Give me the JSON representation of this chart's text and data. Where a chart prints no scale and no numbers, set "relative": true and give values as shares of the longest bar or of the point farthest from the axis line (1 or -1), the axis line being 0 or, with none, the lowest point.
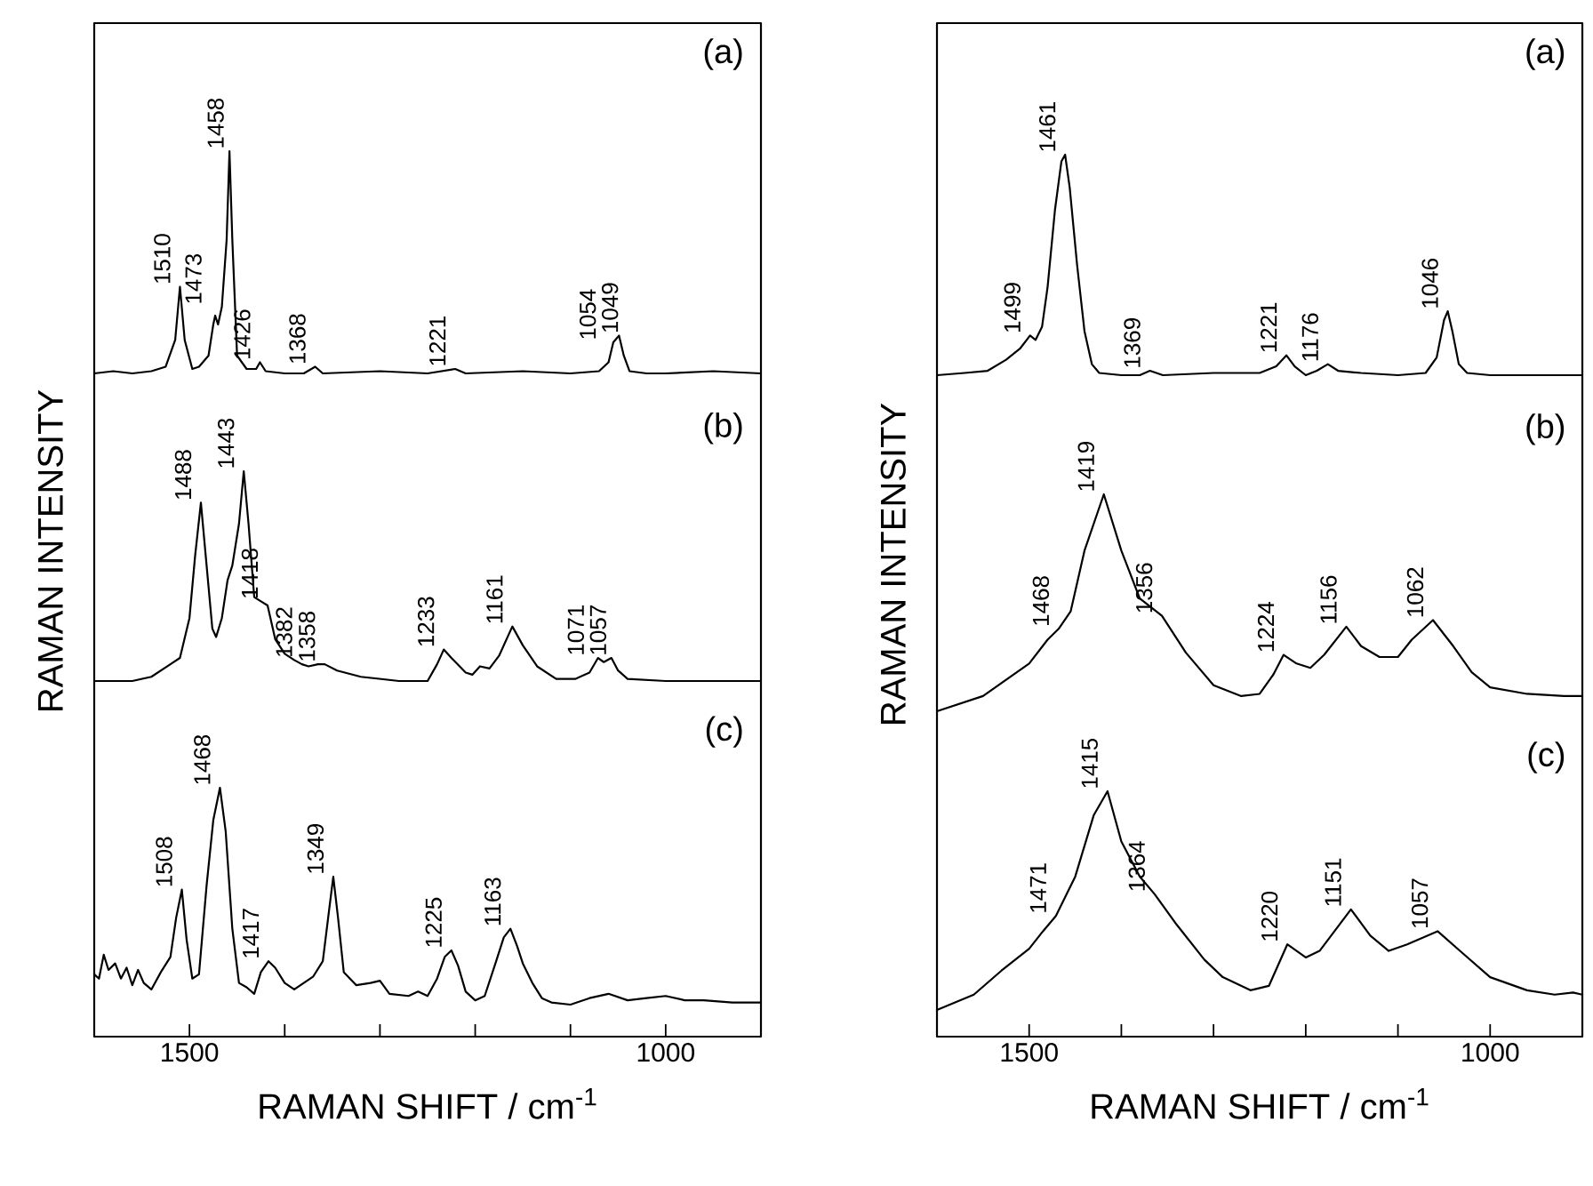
{
  "chart_data": [
    {
      "type": "line",
      "relative": true,
      "xlim": [
        1600,
        900
      ],
      "tick_labels": false,
      "series": [
        {
          "color": "#000000",
          "x": [
            1600,
            1580,
            1560,
            1540,
            1525,
            1515,
            1510,
            1505,
            1497,
            1490,
            1480,
            1475,
            1473,
            1470,
            1466,
            1461,
            1458,
            1455,
            1450,
            1440,
            1430,
            1426,
            1420,
            1400,
            1380,
            1368,
            1360,
            1300,
            1250,
            1221,
            1210,
            1150,
            1100,
            1070,
            1060,
            1055,
            1049,
            1044,
            1038,
            1020,
            1000,
            950,
            900
          ],
          "values": [
            0.0,
            0.01,
            0.0,
            0.01,
            0.03,
            0.15,
            0.39,
            0.15,
            0.02,
            0.03,
            0.08,
            0.22,
            0.26,
            0.22,
            0.3,
            0.6,
            1.0,
            0.6,
            0.08,
            0.02,
            0.02,
            0.05,
            0.01,
            0.0,
            0.0,
            0.03,
            0.0,
            0.01,
            0.0,
            0.02,
            0.0,
            0.01,
            0.0,
            0.01,
            0.05,
            0.14,
            0.17,
            0.08,
            0.01,
            0.0,
            0.0,
            0.01,
            0.0
          ]
        }
      ],
      "annotations": [
        "(a)",
        {
          "text": "1510",
          "x": 1510,
          "y": 0.39
        },
        {
          "text": "1473",
          "x": 1473,
          "y": 0.26
        },
        {
          "text": "1458",
          "x": 1458,
          "y": 1.0
        },
        {
          "text": "1426",
          "x": 1426,
          "y": 0.05
        },
        {
          "text": "1368",
          "x": 1368,
          "y": 0.03
        },
        {
          "text": "1221",
          "x": 1221,
          "y": 0.02
        },
        {
          "text": "1054",
          "x": 1054,
          "y": 0.14
        },
        {
          "text": "1049",
          "x": 1049,
          "y": 0.17
        }
      ]
    },
    {
      "type": "line",
      "relative": true,
      "xlim": [
        1600,
        900
      ],
      "tick_labels": false,
      "ylabel": "RAMAN INTENSITY",
      "series": [
        {
          "color": "#000000",
          "x": [
            1600,
            1560,
            1540,
            1520,
            1510,
            1500,
            1494,
            1488,
            1483,
            1476,
            1472,
            1466,
            1460,
            1455,
            1448,
            1443,
            1438,
            1432,
            1425,
            1418,
            1410,
            1400,
            1390,
            1382,
            1375,
            1365,
            1358,
            1345,
            1320,
            1280,
            1250,
            1240,
            1233,
            1225,
            1210,
            1203,
            1195,
            1185,
            1175,
            1161,
            1150,
            1135,
            1115,
            1095,
            1080,
            1071,
            1065,
            1057,
            1050,
            1040,
            1000,
            950,
            900
          ],
          "values": [
            0.0,
            0.0,
            0.02,
            0.08,
            0.11,
            0.3,
            0.6,
            0.85,
            0.6,
            0.25,
            0.21,
            0.3,
            0.48,
            0.55,
            0.75,
            1.0,
            0.75,
            0.4,
            0.38,
            0.36,
            0.2,
            0.13,
            0.1,
            0.08,
            0.07,
            0.08,
            0.08,
            0.05,
            0.02,
            0.0,
            0.0,
            0.08,
            0.15,
            0.11,
            0.04,
            0.03,
            0.07,
            0.06,
            0.12,
            0.26,
            0.17,
            0.07,
            0.01,
            0.01,
            0.04,
            0.11,
            0.09,
            0.11,
            0.05,
            0.01,
            0.0,
            0.0,
            0.0
          ]
        }
      ],
      "annotations": [
        "(b)",
        {
          "text": "1488",
          "x": 1488,
          "y": 0.85
        },
        {
          "text": "1443",
          "x": 1443,
          "y": 1.0
        },
        {
          "text": "1418",
          "x": 1418,
          "y": 0.36
        },
        {
          "text": "1382",
          "x": 1382,
          "y": 0.08
        },
        {
          "text": "1358",
          "x": 1358,
          "y": 0.08
        },
        {
          "text": "1233",
          "x": 1233,
          "y": 0.15
        },
        {
          "text": "1161",
          "x": 1161,
          "y": 0.26
        },
        {
          "text": "1071",
          "x": 1071,
          "y": 0.11
        },
        {
          "text": "1057",
          "x": 1057,
          "y": 0.11
        }
      ]
    },
    {
      "type": "line",
      "relative": true,
      "xlim": [
        1600,
        900
      ],
      "tick_labels": "x",
      "xlabel": "RAMAN SHIFT / cm$^{-1}$",
      "xticks": [
        {
          "value": 1600,
          "label": null
        },
        1500,
        {
          "value": 1400,
          "label": null
        },
        {
          "value": 1300,
          "label": null
        },
        {
          "value": 1200,
          "label": null
        },
        {
          "value": 1100,
          "label": null
        },
        1000,
        {
          "value": 900,
          "label": null
        }
      ],
      "series": [
        {
          "color": "#000000",
          "x": [
            1600,
            1595,
            1590,
            1585,
            1578,
            1572,
            1566,
            1560,
            1554,
            1548,
            1540,
            1530,
            1520,
            1514,
            1508,
            1503,
            1497,
            1490,
            1482,
            1475,
            1468,
            1462,
            1455,
            1448,
            1440,
            1432,
            1425,
            1417,
            1410,
            1400,
            1390,
            1380,
            1370,
            1360,
            1353,
            1349,
            1344,
            1338,
            1325,
            1310,
            1300,
            1290,
            1270,
            1260,
            1250,
            1240,
            1232,
            1225,
            1218,
            1210,
            1200,
            1190,
            1178,
            1170,
            1163,
            1156,
            1150,
            1140,
            1130,
            1120,
            1100,
            1080,
            1060,
            1040,
            1020,
            1000,
            980,
            960,
            930,
            900
          ],
          "values": [
            0.14,
            0.12,
            0.23,
            0.16,
            0.19,
            0.12,
            0.17,
            0.09,
            0.16,
            0.1,
            0.07,
            0.15,
            0.22,
            0.4,
            0.53,
            0.3,
            0.12,
            0.14,
            0.55,
            0.85,
            1.0,
            0.8,
            0.35,
            0.1,
            0.08,
            0.05,
            0.15,
            0.2,
            0.17,
            0.1,
            0.07,
            0.1,
            0.13,
            0.2,
            0.45,
            0.59,
            0.4,
            0.15,
            0.09,
            0.1,
            0.11,
            0.05,
            0.04,
            0.06,
            0.04,
            0.12,
            0.22,
            0.25,
            0.18,
            0.06,
            0.02,
            0.04,
            0.2,
            0.31,
            0.35,
            0.27,
            0.19,
            0.1,
            0.03,
            0.01,
            0.0,
            0.03,
            0.05,
            0.02,
            0.03,
            0.04,
            0.02,
            0.02,
            0.01,
            0.01
          ]
        }
      ],
      "annotations": [
        "(c)",
        {
          "text": "1508",
          "x": 1508,
          "y": 0.53
        },
        {
          "text": "1468",
          "x": 1468,
          "y": 1.0
        },
        {
          "text": "1417",
          "x": 1417,
          "y": 0.2
        },
        {
          "text": "1349",
          "x": 1349,
          "y": 0.59
        },
        {
          "text": "1225",
          "x": 1225,
          "y": 0.25
        },
        {
          "text": "1163",
          "x": 1163,
          "y": 0.35
        }
      ]
    },
    {
      "type": "line",
      "relative": true,
      "xlim": [
        1600,
        900
      ],
      "tick_labels": false,
      "series": [
        {
          "color": "#000000",
          "x": [
            1600,
            1570,
            1545,
            1525,
            1510,
            1499,
            1493,
            1486,
            1480,
            1472,
            1465,
            1461,
            1456,
            1448,
            1440,
            1432,
            1424,
            1400,
            1380,
            1369,
            1355,
            1300,
            1250,
            1232,
            1221,
            1212,
            1200,
            1188,
            1176,
            1165,
            1140,
            1100,
            1070,
            1058,
            1050,
            1046,
            1041,
            1034,
            1025,
            1000,
            950,
            900
          ],
          "values": [
            0.0,
            0.01,
            0.02,
            0.07,
            0.12,
            0.18,
            0.16,
            0.22,
            0.4,
            0.75,
            0.97,
            1.0,
            0.85,
            0.5,
            0.2,
            0.05,
            0.01,
            0.0,
            0.0,
            0.02,
            0.0,
            0.01,
            0.01,
            0.04,
            0.09,
            0.04,
            0.0,
            0.02,
            0.05,
            0.02,
            0.01,
            0.0,
            0.01,
            0.08,
            0.25,
            0.29,
            0.2,
            0.05,
            0.01,
            0.0,
            0.0,
            0.0
          ]
        }
      ],
      "annotations": [
        "(a)",
        {
          "text": "1499",
          "x": 1499,
          "y": 0.18
        },
        {
          "text": "1461",
          "x": 1461,
          "y": 1.0
        },
        {
          "text": "1369",
          "x": 1369,
          "y": 0.02
        },
        {
          "text": "1221",
          "x": 1221,
          "y": 0.09
        },
        {
          "text": "1176",
          "x": 1176,
          "y": 0.05
        },
        {
          "text": "1046",
          "x": 1046,
          "y": 0.29
        }
      ]
    },
    {
      "type": "line",
      "relative": true,
      "xlim": [
        1600,
        900
      ],
      "tick_labels": false,
      "ylabel": "RAMAN INTENSITY",
      "series": [
        {
          "color": "#000000",
          "x": [
            1600,
            1550,
            1500,
            1480,
            1468,
            1455,
            1440,
            1419,
            1400,
            1380,
            1356,
            1330,
            1300,
            1270,
            1250,
            1235,
            1224,
            1210,
            1195,
            1180,
            1156,
            1140,
            1120,
            1100,
            1085,
            1062,
            1040,
            1020,
            1000,
            960,
            920,
            900
          ],
          "values": [
            0.0,
            0.07,
            0.22,
            0.33,
            0.38,
            0.46,
            0.74,
            1.0,
            0.74,
            0.52,
            0.44,
            0.27,
            0.12,
            0.07,
            0.08,
            0.17,
            0.26,
            0.22,
            0.2,
            0.26,
            0.39,
            0.3,
            0.25,
            0.25,
            0.33,
            0.42,
            0.3,
            0.18,
            0.11,
            0.08,
            0.07,
            0.07
          ]
        }
      ],
      "annotations": [
        "(b)",
        {
          "text": "1468",
          "x": 1468,
          "y": 0.38
        },
        {
          "text": "1419",
          "x": 1419,
          "y": 1.0
        },
        {
          "text": "1356",
          "x": 1356,
          "y": 0.44
        },
        {
          "text": "1224",
          "x": 1224,
          "y": 0.26
        },
        {
          "text": "1156",
          "x": 1156,
          "y": 0.39
        },
        {
          "text": "1062",
          "x": 1062,
          "y": 0.42
        }
      ]
    },
    {
      "type": "line",
      "relative": true,
      "xlim": [
        1600,
        900
      ],
      "tick_labels": "x",
      "xlabel": "RAMAN SHIFT / cm$^{-1}$",
      "xticks": [
        {
          "value": 1600,
          "label": null
        },
        1500,
        {
          "value": 1400,
          "label": null
        },
        {
          "value": 1300,
          "label": null
        },
        {
          "value": 1200,
          "label": null
        },
        {
          "value": 1100,
          "label": null
        },
        1000,
        {
          "value": 900,
          "label": null
        }
      ],
      "series": [
        {
          "color": "#000000",
          "x": [
            1600,
            1560,
            1530,
            1500,
            1485,
            1471,
            1450,
            1430,
            1415,
            1400,
            1380,
            1364,
            1340,
            1310,
            1290,
            1260,
            1240,
            1220,
            1200,
            1185,
            1151,
            1130,
            1110,
            1090,
            1057,
            1030,
            1000,
            960,
            930,
            910,
            900
          ],
          "values": [
            0.0,
            0.07,
            0.18,
            0.28,
            0.36,
            0.43,
            0.61,
            0.89,
            1.0,
            0.77,
            0.61,
            0.53,
            0.39,
            0.23,
            0.15,
            0.09,
            0.11,
            0.3,
            0.24,
            0.27,
            0.46,
            0.34,
            0.27,
            0.3,
            0.36,
            0.26,
            0.15,
            0.09,
            0.07,
            0.08,
            0.07
          ]
        }
      ],
      "annotations": [
        "(c)",
        {
          "text": "1471",
          "x": 1471,
          "y": 0.43
        },
        {
          "text": "1415",
          "x": 1415,
          "y": 1.0
        },
        {
          "text": "1364",
          "x": 1364,
          "y": 0.53
        },
        {
          "text": "1220",
          "x": 1220,
          "y": 0.3
        },
        {
          "text": "1151",
          "x": 1151,
          "y": 0.46
        },
        {
          "text": "1057",
          "x": 1057,
          "y": 0.36
        }
      ]
    }
  ]
}
